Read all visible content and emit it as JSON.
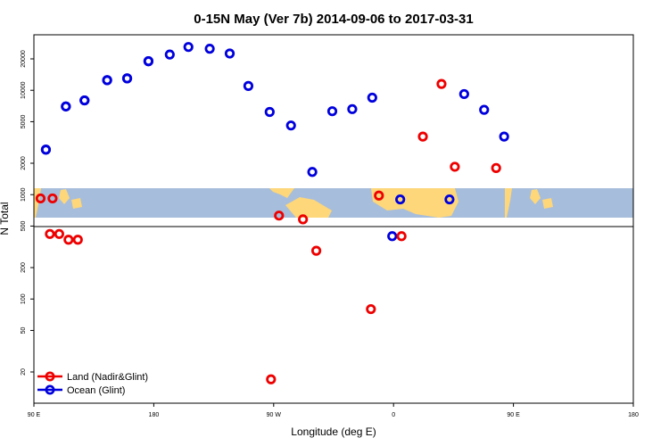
{
  "colors": {
    "land": "#ee0000",
    "ocean": "#0000dd",
    "map_ocean": "#a7bddc",
    "map_land": "#fdd77a"
  },
  "chart_data": {
    "type": "scatter",
    "title": "0-15N May (Ver 7b)   2014-09-06 to 2017-03-31",
    "xlabel": "Longitude (deg E)",
    "ylabel": "N Total",
    "y_scale": "log",
    "ylim": [
      12,
      40000
    ],
    "x_axis": {
      "ticks": [
        {
          "label": "90 E"
        },
        {
          "label": "180"
        },
        {
          "label": "90 W"
        },
        {
          "label": "0"
        },
        {
          "label": "90 E"
        },
        {
          "label": "180"
        }
      ]
    },
    "y_ticks": [
      20,
      50,
      100,
      200,
      500,
      1000,
      2000,
      5000,
      10000,
      20000
    ],
    "series": [
      {
        "name": "Land (Nadir&Glint)",
        "color": "#ee0000",
        "points": [
          {
            "lon": 104,
            "y": 920
          },
          {
            "lon": 109,
            "y": 420
          },
          {
            "lon": 123,
            "y": 370
          },
          {
            "lon": -92,
            "y": 17
          },
          {
            "lon": -86,
            "y": 630
          },
          {
            "lon": -68,
            "y": 580
          },
          {
            "lon": -58,
            "y": 290
          },
          {
            "lon": -17,
            "y": 80
          },
          {
            "lon": -11,
            "y": 980
          },
          {
            "lon": 6,
            "y": 400
          },
          {
            "lon": 22,
            "y": 3600
          },
          {
            "lon": 36,
            "y": 11500
          },
          {
            "lon": 46,
            "y": 1850
          },
          {
            "lon": 77,
            "y": 1800
          },
          {
            "lon": 95,
            "y": 920
          },
          {
            "lon": 102,
            "y": 420
          },
          {
            "lon": 116,
            "y": 370
          }
        ]
      },
      {
        "name": "Ocean (Glint)",
        "color": "#0000dd",
        "points": [
          {
            "lon": 99,
            "y": 2700
          },
          {
            "lon": 114,
            "y": 7000
          },
          {
            "lon": 128,
            "y": 8000
          },
          {
            "lon": 145,
            "y": 12500
          },
          {
            "lon": 160,
            "y": 13000
          },
          {
            "lon": 176,
            "y": 19000
          },
          {
            "lon": -168,
            "y": 22000
          },
          {
            "lon": -154,
            "y": 26000
          },
          {
            "lon": -138,
            "y": 25000
          },
          {
            "lon": -123,
            "y": 22500
          },
          {
            "lon": -109,
            "y": 11000
          },
          {
            "lon": -93,
            "y": 6200
          },
          {
            "lon": -77,
            "y": 4600
          },
          {
            "lon": -61,
            "y": 1650
          },
          {
            "lon": -46,
            "y": 6300
          },
          {
            "lon": -31,
            "y": 6600
          },
          {
            "lon": -16,
            "y": 8500
          },
          {
            "lon": -1,
            "y": 400
          },
          {
            "lon": 5,
            "y": 900
          },
          {
            "lon": 42,
            "y": 900
          },
          {
            "lon": 53,
            "y": 9200
          },
          {
            "lon": 68,
            "y": 6500
          },
          {
            "lon": 83,
            "y": 3600
          },
          {
            "lon": 99,
            "y": 2700
          },
          {
            "lon": 114,
            "y": 7000
          },
          {
            "lon": 128,
            "y": 8000
          },
          {
            "lon": 145,
            "y": 12500
          },
          {
            "lon": 160,
            "y": 13000
          },
          {
            "lon": 176,
            "y": 19000
          }
        ]
      }
    ],
    "legend": {
      "position": "bottom-left",
      "entries": [
        "Land (Nadir&Glint)",
        "Ocean (Glint)"
      ]
    },
    "threshold_line": 500,
    "grid": false
  }
}
